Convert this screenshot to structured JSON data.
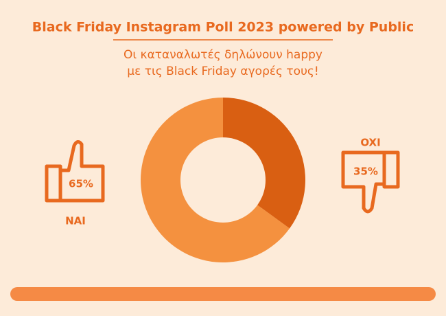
{
  "chart_data": {
    "type": "donut",
    "title": "Black Friday Instagram Poll 2023 powered by Public",
    "subtitle_lines": [
      "Οι καταναλωτές δηλώνουν happy",
      "με τις Black Friday αγορές τους!"
    ],
    "categories": [
      "NAI",
      "OXI"
    ],
    "values": [
      65,
      35
    ],
    "value_labels": [
      "65%",
      "35%"
    ],
    "colors": [
      "#f4913f",
      "#d95f12"
    ]
  }
}
